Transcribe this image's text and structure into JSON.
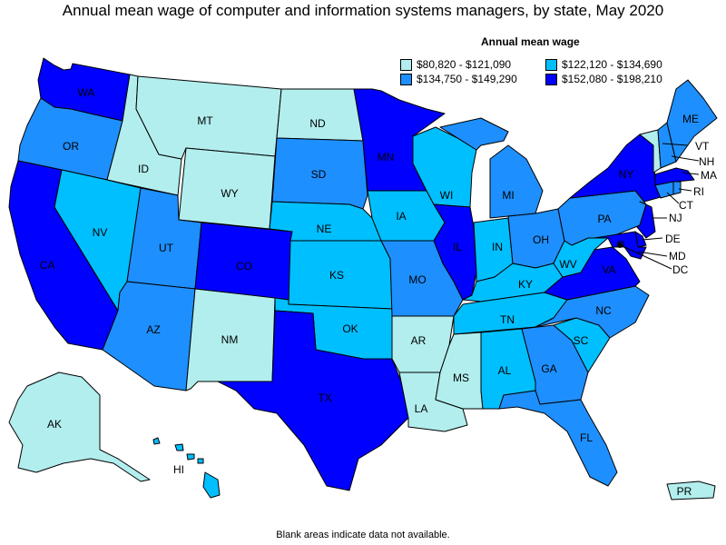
{
  "title": "Annual mean wage of computer and information systems managers, by state, May 2020",
  "legend": {
    "title": "Annual mean wage",
    "items": [
      {
        "label": "$80,820 - $121,090",
        "color": "#b2eeee"
      },
      {
        "label": "$122,120 - $134,690",
        "color": "#00bfff"
      },
      {
        "label": "$134,750 - $149,290",
        "color": "#1e8fff"
      },
      {
        "label": "$152,080 - $198,210",
        "color": "#0000ff"
      }
    ]
  },
  "footnote": "Blank areas indicate data not available.",
  "states": {
    "WA": {
      "label": "WA",
      "tier": 3
    },
    "OR": {
      "label": "OR",
      "tier": 2
    },
    "CA": {
      "label": "CA",
      "tier": 3
    },
    "ID": {
      "label": "ID",
      "tier": 0
    },
    "NV": {
      "label": "NV",
      "tier": 1
    },
    "MT": {
      "label": "MT",
      "tier": 0
    },
    "WY": {
      "label": "WY",
      "tier": 0
    },
    "UT": {
      "label": "UT",
      "tier": 2
    },
    "AZ": {
      "label": "AZ",
      "tier": 2
    },
    "CO": {
      "label": "CO",
      "tier": 3
    },
    "NM": {
      "label": "NM",
      "tier": 0
    },
    "ND": {
      "label": "ND",
      "tier": 0
    },
    "SD": {
      "label": "SD",
      "tier": 2
    },
    "NE": {
      "label": "NE",
      "tier": 1
    },
    "KS": {
      "label": "KS",
      "tier": 1
    },
    "OK": {
      "label": "OK",
      "tier": 1
    },
    "TX": {
      "label": "TX",
      "tier": 3
    },
    "MN": {
      "label": "MN",
      "tier": 3
    },
    "IA": {
      "label": "IA",
      "tier": 1
    },
    "MO": {
      "label": "MO",
      "tier": 2
    },
    "AR": {
      "label": "AR",
      "tier": 0
    },
    "LA": {
      "label": "LA",
      "tier": 0
    },
    "WI": {
      "label": "WI",
      "tier": 1
    },
    "IL": {
      "label": "IL",
      "tier": 3
    },
    "MI": {
      "label": "MI",
      "tier": 2
    },
    "IN": {
      "label": "IN",
      "tier": 1
    },
    "OH": {
      "label": "OH",
      "tier": 2
    },
    "KY": {
      "label": "KY",
      "tier": 1
    },
    "TN": {
      "label": "TN",
      "tier": 1
    },
    "MS": {
      "label": "MS",
      "tier": 0
    },
    "AL": {
      "label": "AL",
      "tier": 1
    },
    "GA": {
      "label": "GA",
      "tier": 2
    },
    "FL": {
      "label": "FL",
      "tier": 2
    },
    "SC": {
      "label": "SC",
      "tier": 1
    },
    "NC": {
      "label": "NC",
      "tier": 2
    },
    "VA": {
      "label": "VA",
      "tier": 3
    },
    "WV": {
      "label": "WV",
      "tier": 1
    },
    "PA": {
      "label": "PA",
      "tier": 2
    },
    "NY": {
      "label": "NY",
      "tier": 3
    },
    "VT": {
      "label": "VT",
      "tier": 0
    },
    "NH": {
      "label": "NH",
      "tier": 2
    },
    "ME": {
      "label": "ME",
      "tier": 2
    },
    "MA": {
      "label": "MA",
      "tier": 3
    },
    "RI": {
      "label": "RI",
      "tier": 2
    },
    "CT": {
      "label": "CT",
      "tier": 2
    },
    "NJ": {
      "label": "NJ",
      "tier": 3
    },
    "DE": {
      "label": "DE",
      "tier": 3
    },
    "MD": {
      "label": "MD",
      "tier": 3
    },
    "DC": {
      "label": "DC",
      "tier": 3
    },
    "AK": {
      "label": "AK",
      "tier": 0
    },
    "HI": {
      "label": "HI",
      "tier": 1
    },
    "PR": {
      "label": "PR",
      "tier": 0
    }
  }
}
